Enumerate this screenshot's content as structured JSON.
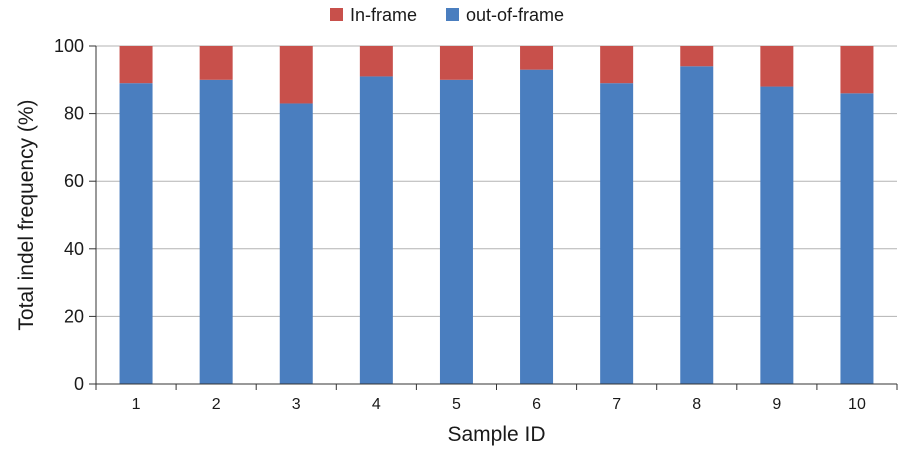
{
  "chart_data": {
    "type": "bar",
    "stacked": true,
    "categories": [
      "1",
      "2",
      "3",
      "4",
      "5",
      "6",
      "7",
      "8",
      "9",
      "10"
    ],
    "series": [
      {
        "name": "out-of-frame",
        "color": "#4a7ebf",
        "values": [
          89,
          90,
          83,
          91,
          90,
          93,
          89,
          94,
          88,
          86
        ]
      },
      {
        "name": "In-frame",
        "color": "#c8504b",
        "values": [
          11,
          10,
          17,
          9,
          10,
          7,
          11,
          6,
          12,
          14
        ]
      }
    ],
    "legend_order": [
      "In-frame",
      "out-of-frame"
    ],
    "legend_position": "top",
    "xlabel": "Sample ID",
    "ylabel": "Total indel frequency (%)",
    "ylim": [
      0,
      100
    ],
    "yticks": [
      0,
      20,
      40,
      60,
      80,
      100
    ],
    "grid": true
  }
}
